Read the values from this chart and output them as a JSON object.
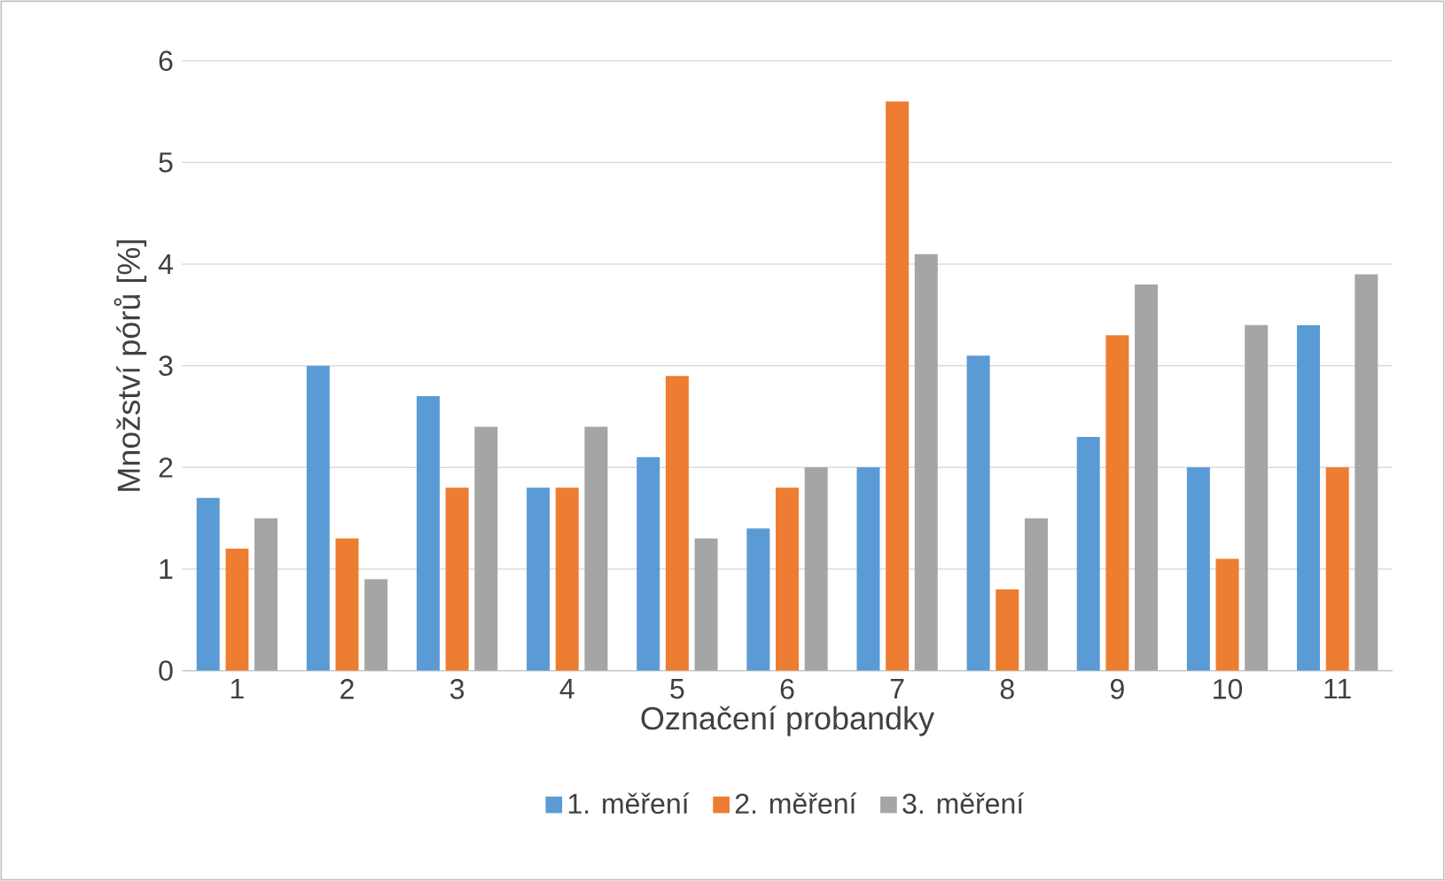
{
  "chart_data": {
    "type": "bar",
    "xlabel": "Označení probandky",
    "ylabel": "Množství pórů [%]",
    "categories": [
      "1",
      "2",
      "3",
      "4",
      "5",
      "6",
      "7",
      "8",
      "9",
      "10",
      "11"
    ],
    "series": [
      {
        "name": "1. měření",
        "color": "#5b9bd5",
        "values": [
          1.7,
          3.0,
          2.7,
          1.8,
          2.1,
          1.4,
          2.0,
          3.1,
          2.3,
          2.0,
          3.4
        ]
      },
      {
        "name": "2. měření",
        "color": "#ed7d31",
        "values": [
          1.2,
          1.3,
          1.8,
          1.8,
          2.9,
          1.8,
          5.6,
          0.8,
          3.3,
          1.1,
          2.0
        ]
      },
      {
        "name": "3. měření",
        "color": "#a5a5a5",
        "values": [
          1.5,
          0.9,
          2.4,
          2.4,
          1.3,
          2.0,
          4.1,
          1.5,
          3.8,
          3.4,
          3.9
        ]
      }
    ],
    "ylim": [
      0,
      6
    ],
    "yticks": [
      0,
      1,
      2,
      3,
      4,
      5,
      6
    ],
    "grid": "y",
    "legend": "bottom"
  }
}
